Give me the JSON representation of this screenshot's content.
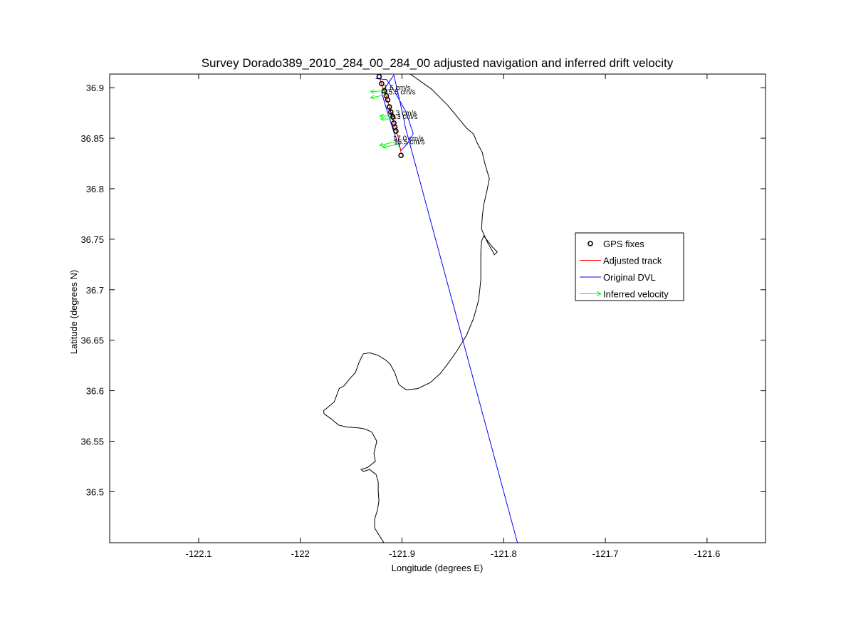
{
  "chart_data": {
    "type": "line",
    "title": "Survey Dorado389_2010_284_00_284_00 adjusted navigation and inferred drift velocity",
    "xlabel": "Longitude (degrees E)",
    "ylabel": "Latitude (degrees N)",
    "xlim": [
      -122.1875,
      -121.5425
    ],
    "ylim": [
      36.4495,
      36.9135
    ],
    "xticks": [
      -122.1,
      -122.0,
      -121.9,
      -121.8,
      -121.7,
      -121.6
    ],
    "xtick_labels": [
      "-122.1",
      "-122",
      "-121.9",
      "-121.8",
      "-121.7",
      "-121.6"
    ],
    "yticks": [
      36.5,
      36.55,
      36.6,
      36.65,
      36.7,
      36.75,
      36.8,
      36.85,
      36.9
    ],
    "ytick_labels": [
      "36.5",
      "36.55",
      "36.6",
      "36.65",
      "36.7",
      "36.75",
      "36.8",
      "36.85",
      "36.9"
    ],
    "grid": false,
    "legend_position": "right",
    "legend": [
      {
        "label": "GPS fixes",
        "style": "marker-circle",
        "color": "#000000"
      },
      {
        "label": "Adjusted track",
        "style": "line",
        "color": "#ff0000"
      },
      {
        "label": "Original DVL",
        "style": "line",
        "color": "#0000ff"
      },
      {
        "label": "Inferred velocity",
        "style": "arrow",
        "color": "#00ff00"
      }
    ],
    "coastline": [
      [
        -121.8918,
        36.9135
      ],
      [
        -121.8708,
        36.8985
      ],
      [
        -121.8554,
        36.883
      ],
      [
        -121.8435,
        36.8685
      ],
      [
        -121.8365,
        36.86
      ],
      [
        -121.8295,
        36.854
      ],
      [
        -121.8267,
        36.8465
      ],
      [
        -121.8211,
        36.836
      ],
      [
        -121.8183,
        36.824
      ],
      [
        -121.8141,
        36.81
      ],
      [
        -121.8169,
        36.796
      ],
      [
        -121.8197,
        36.784
      ],
      [
        -121.8211,
        36.772
      ],
      [
        -121.8218,
        36.76
      ],
      [
        -121.8183,
        36.752
      ],
      [
        -121.8155,
        36.746
      ],
      [
        -121.812,
        36.74
      ],
      [
        -121.8092,
        36.7345
      ],
      [
        -121.8064,
        36.7375
      ],
      [
        -121.8113,
        36.7425
      ],
      [
        -121.8162,
        36.749
      ],
      [
        -121.8197,
        36.753
      ],
      [
        -121.8218,
        36.748
      ],
      [
        -121.8225,
        36.738
      ],
      [
        -121.8225,
        36.71
      ],
      [
        -121.8246,
        36.69
      ],
      [
        -121.8295,
        36.672
      ],
      [
        -121.8365,
        36.655
      ],
      [
        -121.8456,
        36.64
      ],
      [
        -121.854,
        36.628
      ],
      [
        -121.8624,
        36.617
      ],
      [
        -121.8722,
        36.608
      ],
      [
        -121.8848,
        36.602
      ],
      [
        -121.896,
        36.601
      ],
      [
        -121.903,
        36.606
      ],
      [
        -121.9072,
        36.618
      ],
      [
        -121.9114,
        36.626
      ],
      [
        -121.9156,
        36.63
      ],
      [
        -121.9234,
        36.635
      ],
      [
        -121.9318,
        36.6375
      ],
      [
        -121.9381,
        36.6365
      ],
      [
        -121.9423,
        36.628
      ],
      [
        -121.9458,
        36.618
      ],
      [
        -121.9513,
        36.612
      ],
      [
        -121.9569,
        36.605
      ],
      [
        -121.9618,
        36.602
      ],
      [
        -121.9667,
        36.589
      ],
      [
        -121.9737,
        36.583
      ],
      [
        -121.9772,
        36.58
      ],
      [
        -121.9765,
        36.577
      ],
      [
        -121.9695,
        36.572
      ],
      [
        -121.9625,
        36.566
      ],
      [
        -121.9541,
        36.564
      ],
      [
        -121.9471,
        36.5635
      ],
      [
        -121.9415,
        36.563
      ],
      [
        -121.936,
        36.562
      ],
      [
        -121.9297,
        36.559
      ],
      [
        -121.9248,
        36.55
      ],
      [
        -121.9276,
        36.538
      ],
      [
        -121.9262,
        36.53
      ],
      [
        -121.9339,
        36.524
      ],
      [
        -121.9402,
        36.522
      ],
      [
        -121.9381,
        36.52
      ],
      [
        -121.9318,
        36.522
      ],
      [
        -121.9255,
        36.517
      ],
      [
        -121.9234,
        36.51
      ],
      [
        -121.9234,
        36.501
      ],
      [
        -121.9227,
        36.491
      ],
      [
        -121.9241,
        36.482
      ],
      [
        -121.9269,
        36.473
      ],
      [
        -121.9269,
        36.464
      ],
      [
        -121.9213,
        36.455
      ],
      [
        -121.9178,
        36.4495
      ]
    ],
    "series": [
      {
        "name": "Original DVL",
        "color": "#0000ff",
        "x": [
          -121.926,
          -121.915,
          -121.908,
          -121.896,
          -121.889,
          -121.895,
          -121.901,
          -121.908,
          -121.915,
          -121.92,
          -121.908,
          -121.8978,
          -121.897,
          -121.7865
        ],
        "y": [
          36.909,
          36.908,
          36.8975,
          36.876,
          36.8545,
          36.844,
          36.838,
          36.856,
          36.878,
          36.895,
          36.9125,
          36.867,
          36.862,
          36.4495
        ]
      },
      {
        "name": "Adjusted track",
        "color": "#ff0000",
        "x": [
          -121.922,
          -121.92,
          -121.915,
          -121.912,
          -121.908,
          -121.904,
          -121.901
        ],
        "y": [
          36.91,
          36.903,
          36.89,
          36.879,
          36.865,
          36.852,
          36.836
        ]
      }
    ],
    "gps_fixes": {
      "x": [
        -121.9225,
        -121.92,
        -121.9175,
        -121.9155,
        -121.914,
        -121.9125,
        -121.911,
        -121.909,
        -121.908,
        -121.907,
        -121.906,
        -121.901
      ],
      "y": [
        36.911,
        36.904,
        36.897,
        36.892,
        36.888,
        36.881,
        36.876,
        36.871,
        36.865,
        36.861,
        36.857,
        36.833
      ]
    },
    "velocity_arrows": [
      {
        "x": -121.917,
        "y": 36.897,
        "u": -0.014,
        "v": -0.001
      },
      {
        "x": -121.916,
        "y": 36.893,
        "u": -0.015,
        "v": -0.003
      },
      {
        "x": -121.911,
        "y": 36.872,
        "u": -0.011,
        "v": 0.0
      },
      {
        "x": -121.91,
        "y": 36.869,
        "u": -0.011,
        "v": 0.0
      },
      {
        "x": -121.904,
        "y": 36.847,
        "u": -0.018,
        "v": -0.004
      },
      {
        "x": -121.903,
        "y": 36.844,
        "u": -0.016,
        "v": -0.003
      }
    ],
    "velocity_labels": [
      {
        "x": -121.918,
        "y": 36.8975,
        "text": "1.6 cm/s"
      },
      {
        "x": -121.917,
        "y": 36.8935,
        "text": "15.5 cm/s"
      },
      {
        "x": -121.912,
        "y": 36.8725,
        "text": "8.3 cm/s"
      },
      {
        "x": -121.911,
        "y": 36.869,
        "text": "8.3 cm/s"
      },
      {
        "x": -121.909,
        "y": 36.8475,
        "text": "17.0 cm/s"
      },
      {
        "x": -121.908,
        "y": 36.844,
        "text": "15.5 cm/s"
      }
    ]
  }
}
